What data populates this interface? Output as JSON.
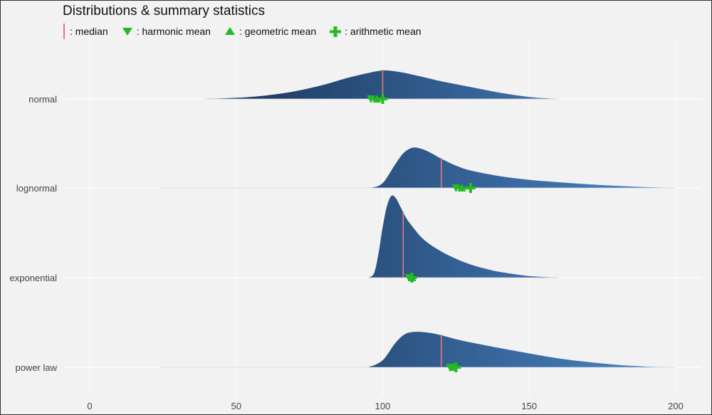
{
  "chart_data": {
    "type": "ridgeline",
    "title": "Distributions & summary statistics",
    "legend": [
      {
        "key": "median",
        "label": ": median",
        "color": "#e07a7a"
      },
      {
        "key": "harmonic",
        "label": ": harmonic mean",
        "color": "#22bb22"
      },
      {
        "key": "geometric",
        "label": ": geometric mean",
        "color": "#22bb22"
      },
      {
        "key": "arithmetic",
        "label": ": arithmetic mean",
        "color": "#22bb22"
      }
    ],
    "xlim": [
      0,
      200
    ],
    "xticks": [
      0,
      50,
      100,
      150,
      200
    ],
    "xtick_labels": [
      "0",
      "50",
      "100",
      "150",
      "200"
    ],
    "fill_colors": {
      "dark": "#1a3458",
      "light": "#4a86c6"
    },
    "series": [
      {
        "name": "normal",
        "median": 100,
        "harmonic_mean": 96,
        "geometric_mean": 98,
        "arithmetic_mean": 100,
        "density_x": [
          39,
          50,
          60,
          70,
          80,
          88,
          95,
          100,
          105,
          110,
          115,
          120,
          130,
          140,
          150,
          158,
          160
        ],
        "density_y": [
          0,
          0.04,
          0.12,
          0.27,
          0.5,
          0.74,
          0.91,
          1.0,
          0.96,
          0.86,
          0.74,
          0.62,
          0.42,
          0.22,
          0.07,
          0.01,
          0
        ]
      },
      {
        "name": "lognormal",
        "median": 120,
        "harmonic_mean": 125,
        "geometric_mean": 127,
        "arithmetic_mean": 130,
        "density_x": [
          24,
          60,
          90,
          96,
          100,
          104,
          107,
          110,
          113,
          116,
          120,
          125,
          130,
          140,
          150,
          160,
          170,
          180,
          190,
          200
        ],
        "density_y": [
          0,
          0,
          0,
          0.005,
          0.12,
          0.55,
          0.85,
          0.99,
          0.97,
          0.88,
          0.72,
          0.55,
          0.43,
          0.29,
          0.2,
          0.14,
          0.09,
          0.05,
          0.02,
          0
        ]
      },
      {
        "name": "exponential",
        "median": 107,
        "harmonic_mean": 109,
        "geometric_mean": 110,
        "arithmetic_mean": 110,
        "density_x": [
          95,
          97,
          98.5,
          100,
          101.5,
          103,
          104.5,
          106,
          108,
          110,
          113,
          116,
          120,
          125,
          130,
          135,
          140,
          150,
          160
        ],
        "density_y": [
          0,
          0.05,
          0.28,
          0.62,
          0.88,
          1.0,
          0.97,
          0.87,
          0.73,
          0.63,
          0.5,
          0.41,
          0.32,
          0.23,
          0.16,
          0.11,
          0.07,
          0.02,
          0
        ]
      },
      {
        "name": "power law",
        "median": 120,
        "harmonic_mean": 123,
        "geometric_mean": 124,
        "arithmetic_mean": 125,
        "density_x": [
          24,
          60,
          90,
          95,
          100,
          104,
          107,
          110,
          115,
          120,
          125,
          130,
          140,
          150,
          160,
          170,
          180,
          190,
          200
        ],
        "density_y": [
          0,
          0,
          0,
          0.005,
          0.2,
          0.65,
          0.9,
          0.99,
          0.98,
          0.9,
          0.79,
          0.7,
          0.54,
          0.39,
          0.25,
          0.15,
          0.07,
          0.02,
          0
        ]
      }
    ]
  }
}
